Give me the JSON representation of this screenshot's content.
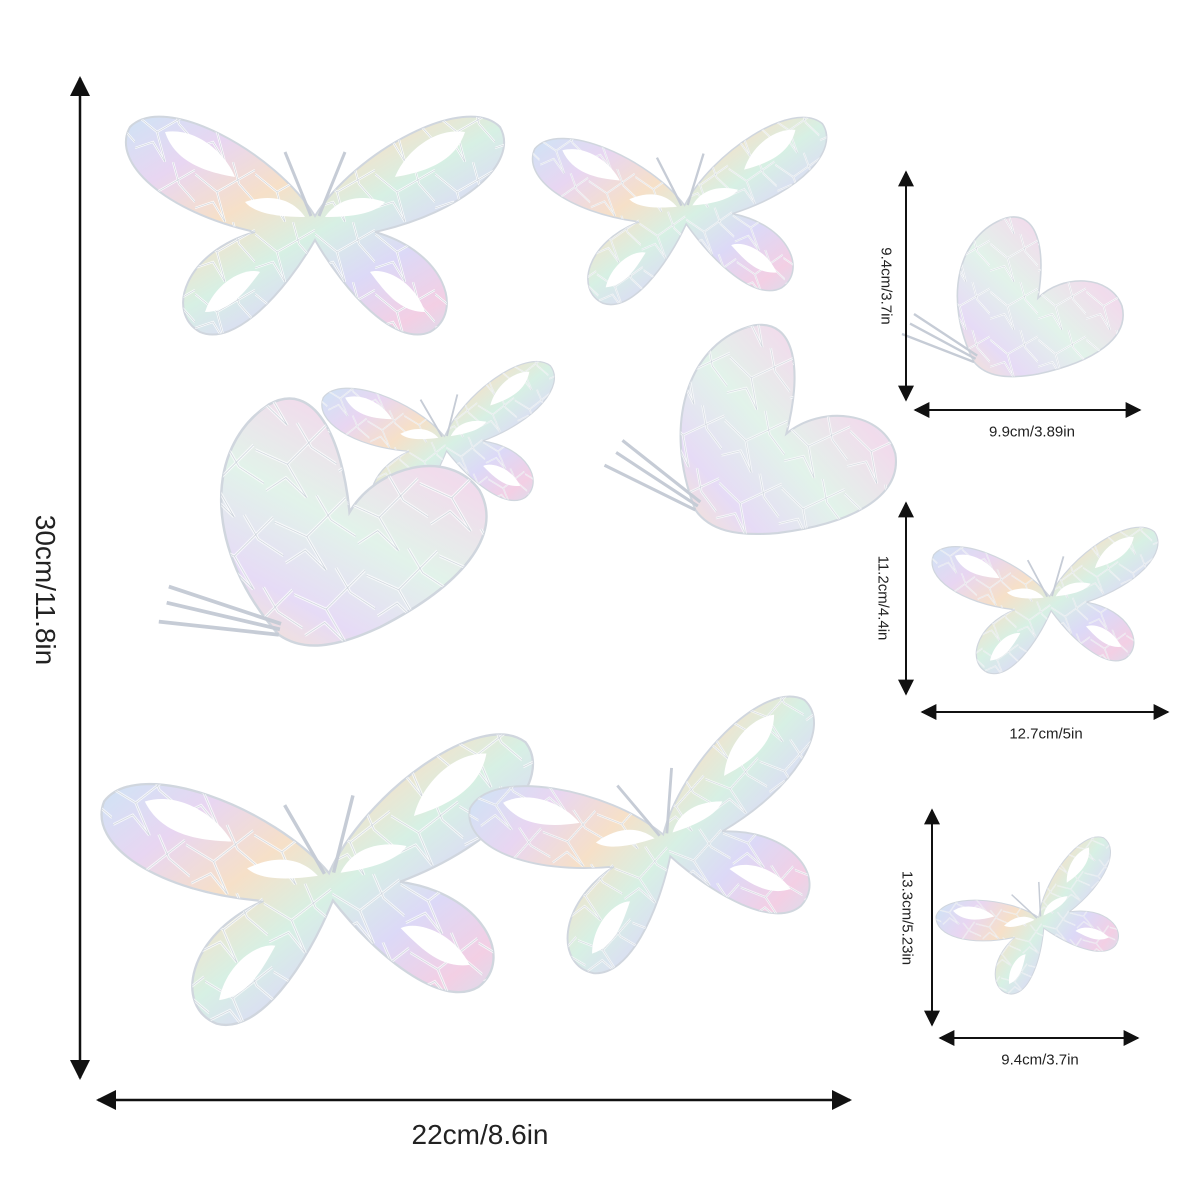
{
  "sheet": {
    "height_label": "30cm/11.8in",
    "width_label": "22cm/8.6in"
  },
  "samples": [
    {
      "height_label": "9.4cm/3.7in",
      "width_label": "9.9cm/3.89in"
    },
    {
      "height_label": "11.2cm/4.4in",
      "width_label": "12.7cm/5in"
    },
    {
      "height_label": "13.3cm/5.23in",
      "width_label": "9.4cm/3.7in"
    }
  ],
  "colors": {
    "ink": "#222222",
    "iridescent": [
      "#cfe3f5",
      "#e8d6f2",
      "#f6e0c8",
      "#d7f0e4",
      "#dcd9f7",
      "#f3cfe4",
      "#c9e7f2"
    ]
  },
  "icons": [
    "butterfly-icon",
    "arrow-icon"
  ]
}
